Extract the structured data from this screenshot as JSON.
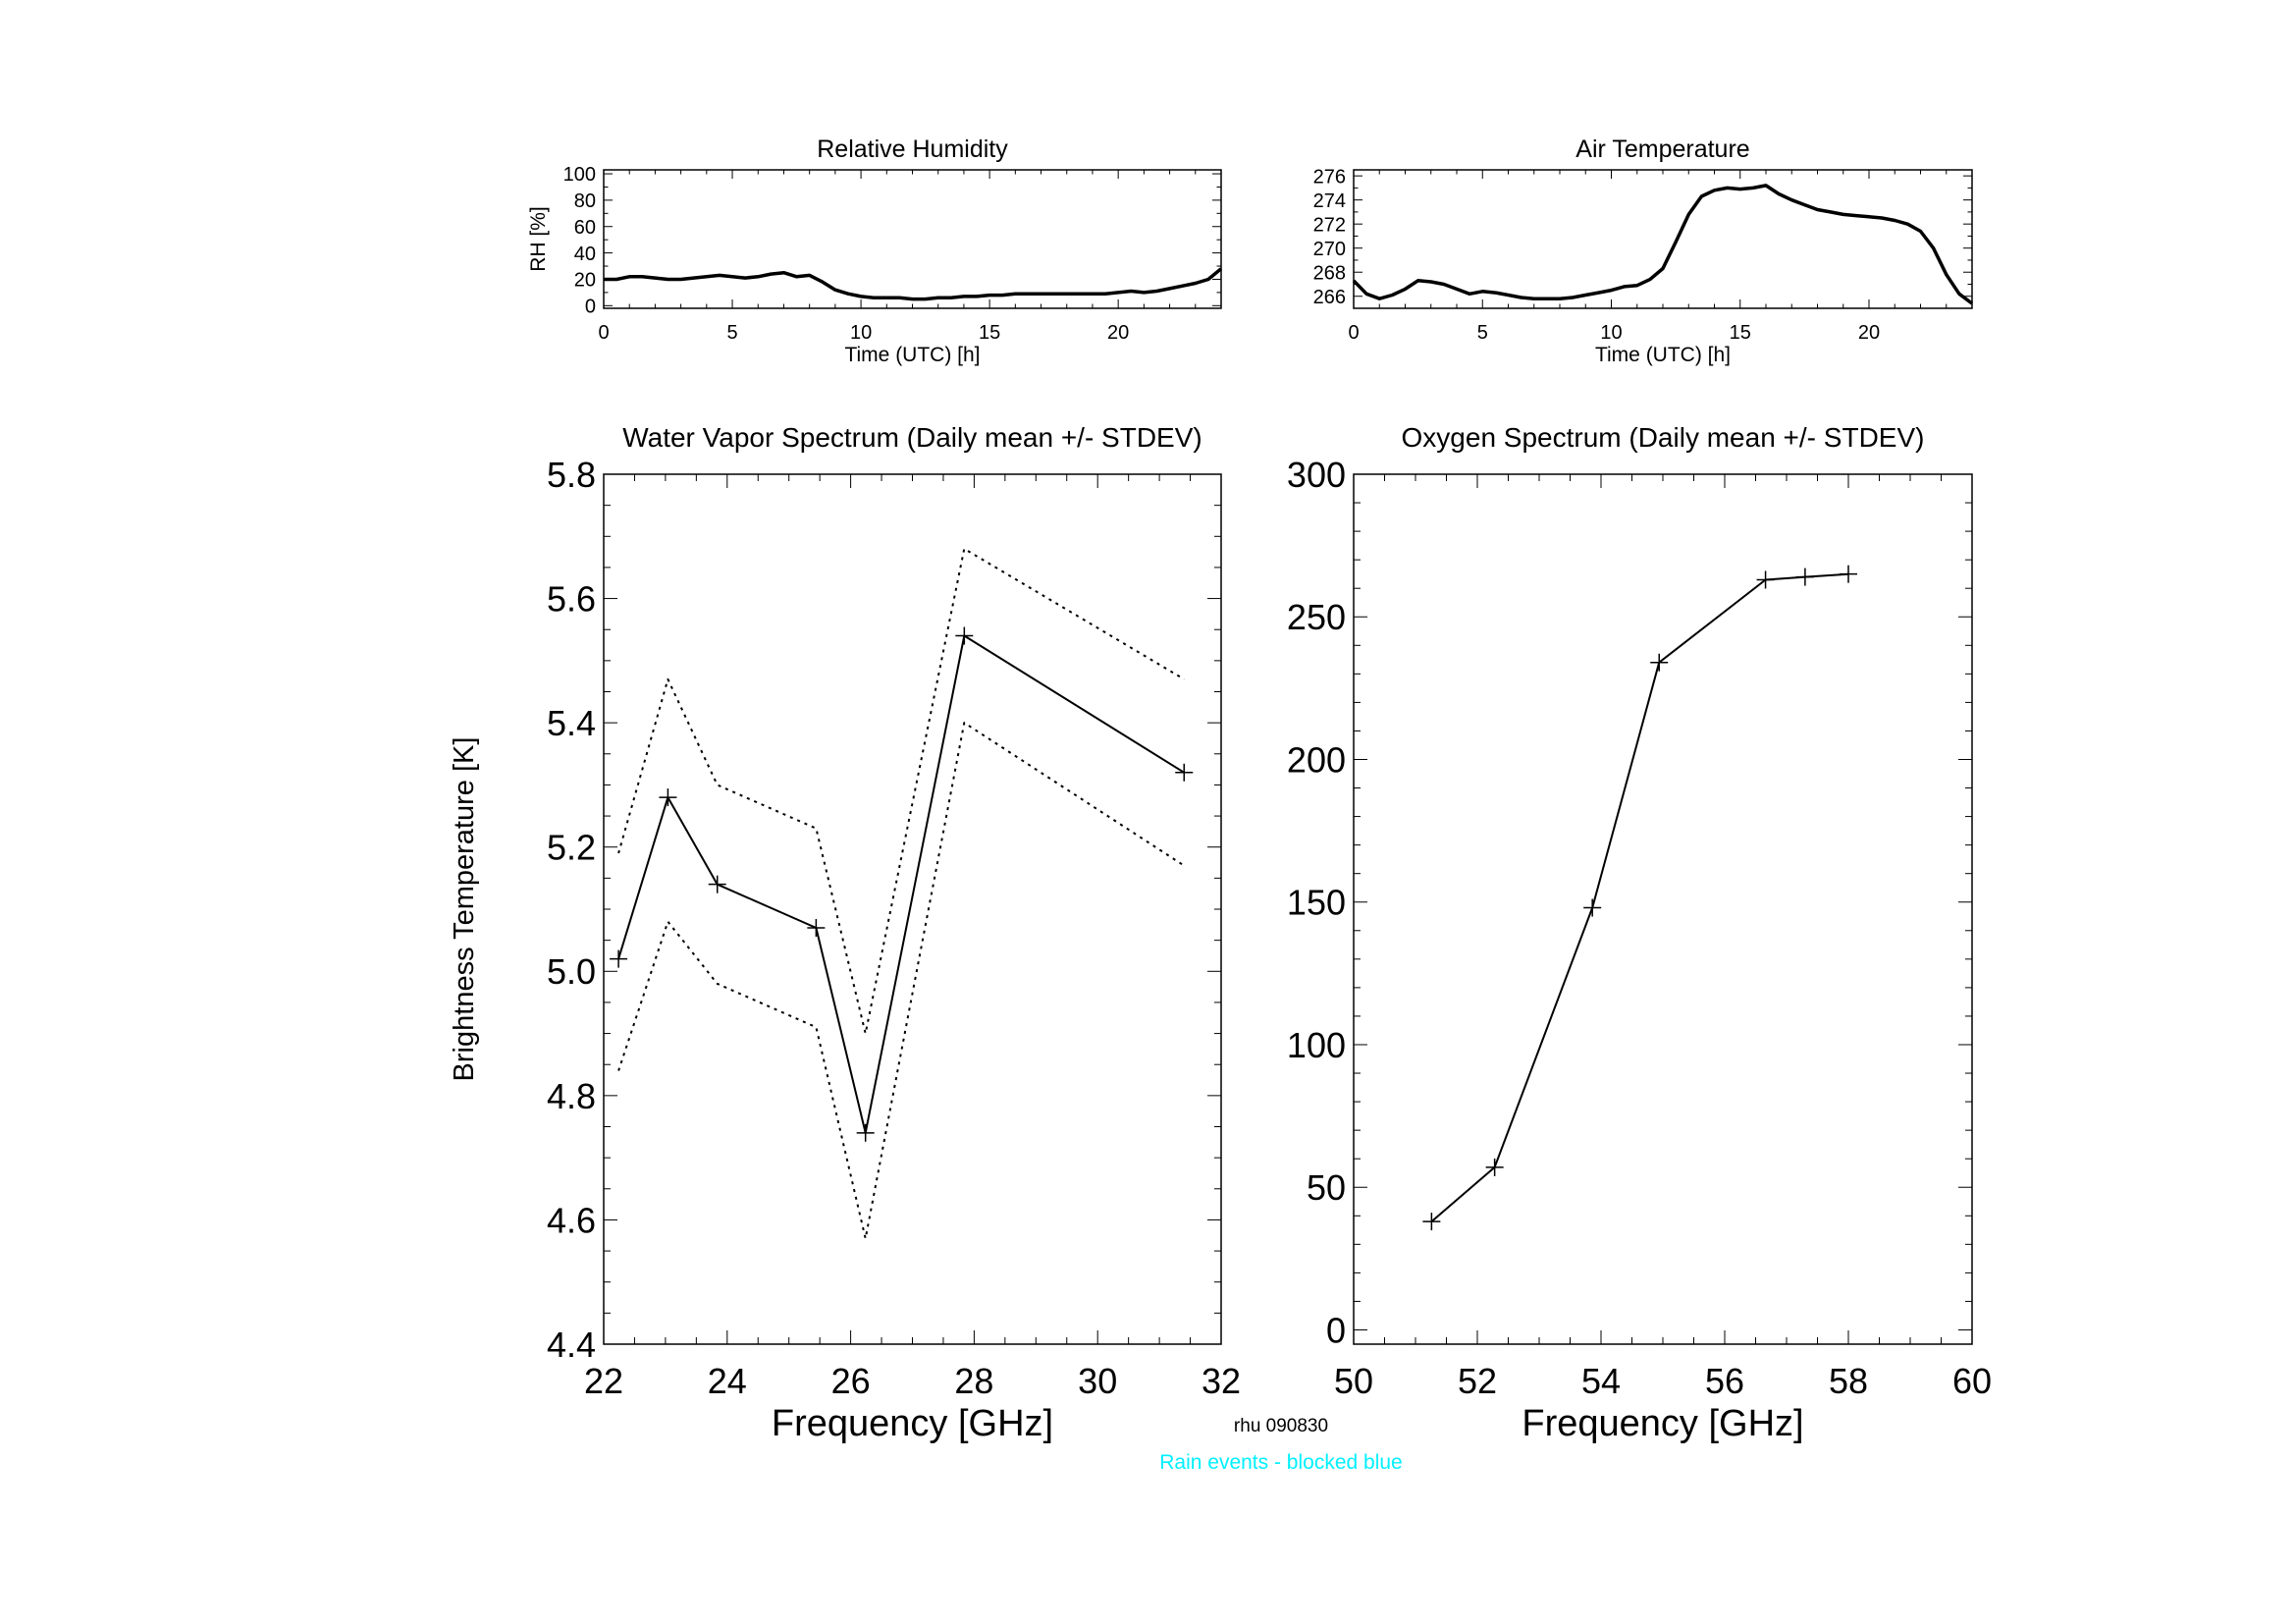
{
  "footer": {
    "station": "rhu 090830",
    "note": "Rain events - blocked blue",
    "note_color": "#00f0ff"
  },
  "chart_data": [
    {
      "id": "rh",
      "type": "line",
      "title": "Relative Humidity",
      "xlabel": "Time (UTC) [h]",
      "ylabel": "RH [%]",
      "xlim": [
        0,
        24
      ],
      "ylim": [
        -2,
        103
      ],
      "xticks": [
        0,
        5,
        10,
        15,
        20
      ],
      "yticks": [
        0,
        20,
        40,
        60,
        80,
        100
      ],
      "series": [
        {
          "x": [
            0,
            0.5,
            1,
            1.5,
            2,
            2.5,
            3,
            3.5,
            4,
            4.5,
            5,
            5.5,
            6,
            6.5,
            7,
            7.5,
            8,
            8.5,
            9,
            9.5,
            10,
            10.5,
            11,
            11.5,
            12,
            12.5,
            13,
            13.5,
            14,
            14.5,
            15,
            15.5,
            16,
            16.5,
            17,
            17.5,
            18,
            18.5,
            19,
            19.5,
            20,
            20.5,
            21,
            21.5,
            22,
            22.5,
            23,
            23.5,
            24
          ],
          "y": [
            20,
            20,
            22,
            22,
            21,
            20,
            20,
            21,
            22,
            23,
            22,
            21,
            22,
            24,
            25,
            22,
            23,
            18,
            12,
            9,
            7,
            6,
            6,
            6,
            5,
            5,
            6,
            6,
            7,
            7,
            8,
            8,
            9,
            9,
            9,
            9,
            9,
            9,
            9,
            9,
            10,
            11,
            10,
            11,
            13,
            15,
            17,
            20,
            28
          ]
        }
      ]
    },
    {
      "id": "temp",
      "type": "line",
      "title": "Air Temperature",
      "xlabel": "Time (UTC) [h]",
      "ylabel": "",
      "xlim": [
        0,
        24
      ],
      "ylim": [
        265,
        276.5
      ],
      "xticks": [
        0,
        5,
        10,
        15,
        20
      ],
      "yticks": [
        266,
        268,
        270,
        272,
        274,
        276
      ],
      "series": [
        {
          "x": [
            0,
            0.5,
            1,
            1.5,
            2,
            2.5,
            3,
            3.5,
            4,
            4.5,
            5,
            5.5,
            6,
            6.5,
            7,
            7.5,
            8,
            8.5,
            9,
            9.5,
            10,
            10.5,
            11,
            11.5,
            12,
            12.5,
            13,
            13.5,
            14,
            14.5,
            15,
            15.5,
            16,
            16.5,
            17,
            17.5,
            18,
            18.5,
            19,
            19.5,
            20,
            20.5,
            21,
            21.5,
            22,
            22.5,
            23,
            23.5,
            24
          ],
          "y": [
            267.3,
            266.2,
            265.8,
            266.1,
            266.6,
            267.3,
            267.2,
            267.0,
            266.6,
            266.2,
            266.4,
            266.3,
            266.1,
            265.9,
            265.8,
            265.8,
            265.8,
            265.9,
            266.1,
            266.3,
            266.5,
            266.8,
            266.9,
            267.4,
            268.3,
            270.5,
            272.8,
            274.3,
            274.8,
            275.0,
            274.9,
            275.0,
            275.2,
            274.5,
            274.0,
            273.6,
            273.2,
            273.0,
            272.8,
            272.7,
            272.6,
            272.5,
            272.3,
            272.0,
            271.4,
            270.0,
            267.8,
            266.2,
            265.4
          ]
        }
      ]
    },
    {
      "id": "wv",
      "type": "line",
      "title": "Water Vapor Spectrum (Daily mean +/- STDEV)",
      "xlabel": "Frequency [GHz]",
      "ylabel": "Brightness Temperature [K]",
      "xlim": [
        22,
        32
      ],
      "ylim": [
        4.4,
        5.8
      ],
      "xticks": [
        22,
        24,
        26,
        28,
        30,
        32
      ],
      "yticks": [
        4.4,
        4.6,
        4.8,
        5.0,
        5.2,
        5.4,
        5.6,
        5.8
      ],
      "x": [
        22.24,
        23.04,
        23.84,
        25.44,
        26.24,
        27.84,
        31.4
      ],
      "series": [
        {
          "name": "",
          "style": "solid",
          "markers": true,
          "values": [
            5.02,
            5.28,
            5.14,
            5.07,
            4.74,
            5.54,
            5.32
          ]
        },
        {
          "name": "",
          "style": "dotted",
          "markers": false,
          "values": [
            5.19,
            5.47,
            5.3,
            5.23,
            4.9,
            5.68,
            5.47
          ]
        },
        {
          "name": "",
          "style": "dotted",
          "markers": false,
          "values": [
            4.84,
            5.08,
            4.98,
            4.91,
            4.57,
            5.4,
            5.17
          ]
        }
      ]
    },
    {
      "id": "ox",
      "type": "line",
      "title": "Oxygen Spectrum (Daily mean +/- STDEV)",
      "xlabel": "Frequency [GHz]",
      "ylabel": "",
      "xlim": [
        50,
        60
      ],
      "ylim": [
        -5,
        300
      ],
      "xticks": [
        50,
        52,
        54,
        56,
        58,
        60
      ],
      "yticks": [
        0,
        50,
        100,
        150,
        200,
        250,
        300
      ],
      "x": [
        51.26,
        52.28,
        53.86,
        54.94,
        56.66,
        57.3,
        58.0
      ],
      "series": [
        {
          "name": "",
          "style": "solid",
          "markers": true,
          "values": [
            38,
            57,
            148,
            234,
            263,
            264,
            265
          ]
        }
      ]
    }
  ]
}
